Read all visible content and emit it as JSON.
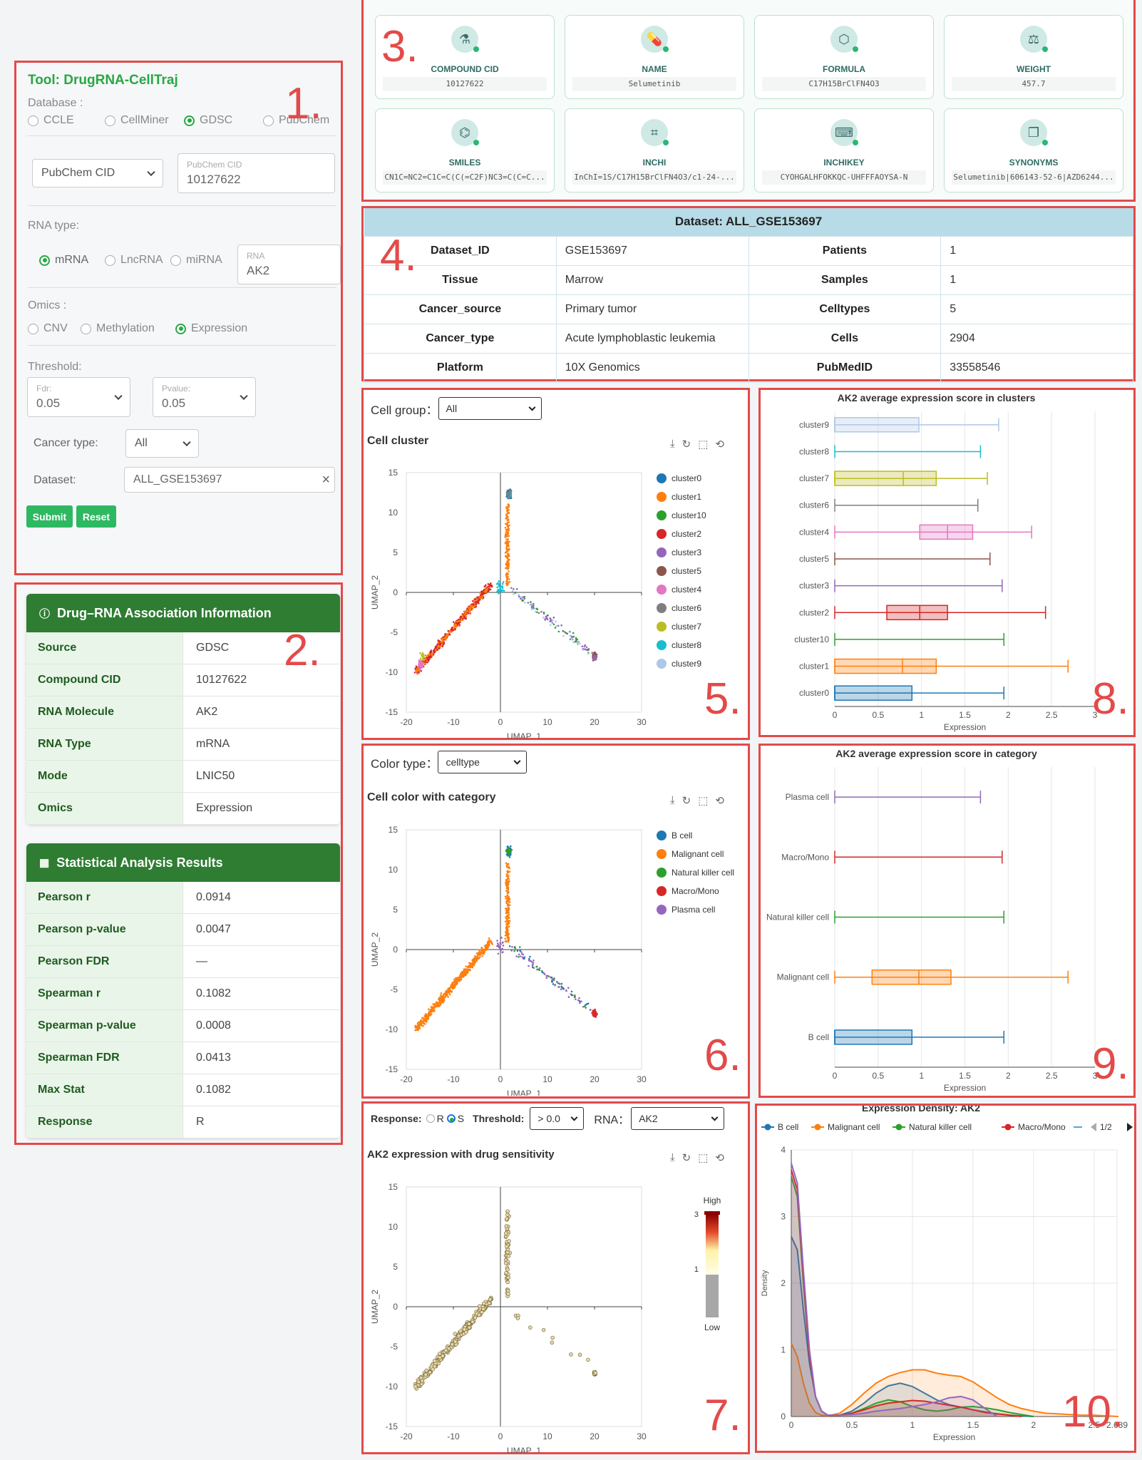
{
  "annotations": [
    "1.",
    "2.",
    "3.",
    "4.",
    "5.",
    "6.",
    "7.",
    "8.",
    "9.",
    "10."
  ],
  "tool_panel": {
    "title": "Tool: DrugRNA-CellTraj",
    "database_label": "Database :",
    "databases": [
      "CCLE",
      "CellMiner",
      "GDSC",
      "PubChem"
    ],
    "database_selected": "GDSC",
    "id_type": "PubChem CID",
    "id_field_label": "PubChem CID",
    "id_field_value": "10127622",
    "rna_type_label": "RNA type:",
    "rna_types": [
      "mRNA",
      "LncRNA",
      "miRNA"
    ],
    "rna_type_selected": "mRNA",
    "rna_field_label": "RNA",
    "rna_field_value": "AK2",
    "omics_label": "Omics :",
    "omics": [
      "CNV",
      "Methylation",
      "Expression"
    ],
    "omics_selected": "Expression",
    "threshold_label": "Threshold:",
    "fdr_label": "Fdr:",
    "fdr_value": "0.05",
    "pvalue_label": "Pvalue:",
    "pvalue_value": "0.05",
    "cancer_type_label": "Cancer type:",
    "cancer_type_value": "All",
    "dataset_label": "Dataset:",
    "dataset_value": "ALL_GSE153697",
    "clear_icon": "×",
    "submit_label": "Submit",
    "reset_label": "Reset"
  },
  "assoc_card": {
    "icon": "i",
    "title": "Drug–RNA Association Information",
    "rows": [
      {
        "k": "Source",
        "v": "GDSC"
      },
      {
        "k": "Compound CID",
        "v": "10127622"
      },
      {
        "k": "RNA Molecule",
        "v": "AK2"
      },
      {
        "k": "RNA Type",
        "v": "mRNA"
      },
      {
        "k": "Mode",
        "v": "LNIC50"
      },
      {
        "k": "Omics",
        "v": "Expression"
      }
    ]
  },
  "stats_card": {
    "icon": "📊",
    "title": "Statistical Analysis Results",
    "rows": [
      {
        "k": "Pearson r",
        "v": "0.0914"
      },
      {
        "k": "Pearson p-value",
        "v": "0.0047"
      },
      {
        "k": "Pearson FDR",
        "v": "—"
      },
      {
        "k": "Spearman r",
        "v": "0.1082"
      },
      {
        "k": "Spearman p-value",
        "v": "0.0008"
      },
      {
        "k": "Spearman FDR",
        "v": "0.0413"
      },
      {
        "k": "Max Stat",
        "v": "0.1082"
      },
      {
        "k": "Response",
        "v": "R"
      }
    ]
  },
  "compound_tiles": [
    {
      "label": "COMPOUND CID",
      "value": "10127622",
      "icon": "pill-bottle-icon",
      "glyph": "⚗"
    },
    {
      "label": "NAME",
      "value": "Selumetinib",
      "icon": "pills-icon",
      "glyph": "💊"
    },
    {
      "label": "FORMULA",
      "value": "C17H15BrClFN4O3",
      "icon": "hexagon-icon",
      "glyph": "⬡"
    },
    {
      "label": "WEIGHT",
      "value": "457.7",
      "icon": "scale-icon",
      "glyph": "⚖"
    },
    {
      "label": "SMILES",
      "value": "CN1C=NC2=C1C=C(C(=C2F)NC3=C(C=C...",
      "icon": "molecule-icon",
      "glyph": "⌬"
    },
    {
      "label": "INCHI",
      "value": "InChI=1S/C17H15BrClFN4O3/c1-24-...",
      "icon": "scan-icon",
      "glyph": "⌗"
    },
    {
      "label": "INCHIKEY",
      "value": "CYOHGALHFOKKQC-UHFFFAOYSA-N",
      "icon": "terminal-icon",
      "glyph": "⌨"
    },
    {
      "label": "SYNONYMS",
      "value": "Selumetinib|606143-52-6|AZD6244...",
      "icon": "copy-icon",
      "glyph": "❐"
    }
  ],
  "dataset_table": {
    "title": "Dataset: ALL_GSE153697",
    "rows": [
      [
        "Dataset_ID",
        "GSE153697",
        "Patients",
        "1"
      ],
      [
        "Tissue",
        "Marrow",
        "Samples",
        "1"
      ],
      [
        "Cancer_source",
        "Primary tumor",
        "Celltypes",
        "5"
      ],
      [
        "Cancer_type",
        "Acute lymphoblastic leukemia",
        "Cells",
        "2904"
      ],
      [
        "Platform",
        "10X Genomics",
        "PubMedID",
        "33558546"
      ]
    ]
  },
  "cluster_panel": {
    "control_label": "Cell group：",
    "control_value": "All",
    "title": "Cell cluster",
    "xlabel": "UMAP_1",
    "ylabel": "UMAP_2"
  },
  "category_panel": {
    "control_label": "Color type：",
    "control_value": "celltype",
    "title": "Cell color with category",
    "xlabel": "UMAP_1",
    "ylabel": "UMAP_2"
  },
  "response_panel": {
    "response_label": "Response:",
    "response_options": [
      "R",
      "S"
    ],
    "response_selected": "S",
    "threshold_label": "Threshold:",
    "threshold_value": "> 0.0",
    "rna_label": "RNA：",
    "rna_value": "AK2",
    "title": "AK2 expression with drug sensitivity",
    "xlabel": "UMAP_1",
    "ylabel": "UMAP_2",
    "scale_high": "High",
    "scale_low": "Low",
    "scale_max": "3",
    "scale_mid": "1"
  },
  "colors": {
    "cluster0": "#1f77b4",
    "cluster1": "#ff7f0e",
    "cluster10": "#2ca02c",
    "cluster2": "#d62728",
    "cluster3": "#9467bd",
    "cluster5": "#8c564b",
    "cluster4": "#e377c2",
    "cluster6": "#7f7f7f",
    "cluster7": "#bcbd22",
    "cluster8": "#17becf",
    "cluster9": "#aec7e8",
    "B cell": "#1f77b4",
    "Malignant cell": "#ff7f0e",
    "Natural killer cell": "#2ca02c",
    "Macro/Mono": "#d62728",
    "Plasma cell": "#9467bd"
  },
  "chart_data": [
    {
      "type": "scatter",
      "title": "Cell cluster",
      "xlabel": "UMAP_1",
      "ylabel": "UMAP_2",
      "xlim": [
        -20,
        30
      ],
      "ylim": [
        -15,
        15
      ],
      "xticks": [
        -20,
        -10,
        0,
        10,
        20,
        30
      ],
      "yticks": [
        -15,
        -10,
        -5,
        0,
        5,
        10,
        15
      ],
      "legend": [
        "cluster0",
        "cluster1",
        "cluster10",
        "cluster2",
        "cluster3",
        "cluster5",
        "cluster4",
        "cluster6",
        "cluster7",
        "cluster8",
        "cluster9"
      ],
      "legend_position": "right",
      "grid": "off"
    },
    {
      "type": "scatter",
      "title": "Cell color with category",
      "xlabel": "UMAP_1",
      "ylabel": "UMAP_2",
      "xlim": [
        -20,
        30
      ],
      "ylim": [
        -15,
        15
      ],
      "xticks": [
        -20,
        -10,
        0,
        10,
        20,
        30
      ],
      "yticks": [
        -15,
        -10,
        -5,
        0,
        5,
        10,
        15
      ],
      "legend": [
        "B cell",
        "Malignant cell",
        "Natural killer cell",
        "Macro/Mono",
        "Plasma cell"
      ],
      "legend_position": "right",
      "grid": "off"
    },
    {
      "type": "scatter",
      "title": "AK2 expression with drug sensitivity",
      "xlabel": "UMAP_1",
      "ylabel": "UMAP_2",
      "xlim": [
        -20,
        30
      ],
      "ylim": [
        -15,
        15
      ],
      "xticks": [
        -20,
        -10,
        0,
        10,
        20,
        30
      ],
      "yticks": [
        -15,
        -10,
        -5,
        0,
        5,
        10,
        15
      ],
      "grid": "off"
    },
    {
      "type": "box",
      "orientation": "horizontal",
      "title": "AK2 average expression score in clusters",
      "xlabel": "Expression",
      "xlim": [
        0,
        3
      ],
      "xticks": [
        0,
        0.5,
        1,
        1.5,
        2,
        2.5,
        3
      ],
      "xtick_labels": [
        "0",
        "0.5",
        "1",
        "1.5",
        "2",
        "2.5",
        "3"
      ],
      "categories": [
        "cluster9",
        "cluster8",
        "cluster7",
        "cluster6",
        "cluster4",
        "cluster5",
        "cluster3",
        "cluster2",
        "cluster10",
        "cluster1",
        "cluster0"
      ],
      "boxes": [
        {
          "min": 0,
          "q1": 0,
          "median": 0,
          "q3": 0.97,
          "max": 1.89
        },
        {
          "min": 0,
          "q1": 0,
          "median": 0,
          "q3": 0,
          "max": 1.68
        },
        {
          "min": 0,
          "q1": 0,
          "median": 0.79,
          "q3": 1.17,
          "max": 1.76
        },
        {
          "min": 0,
          "q1": 0,
          "median": 0,
          "q3": 0,
          "max": 1.65
        },
        {
          "min": 0,
          "q1": 0.98,
          "median": 1.3,
          "q3": 1.59,
          "max": 2.27
        },
        {
          "min": 0,
          "q1": 0,
          "median": 0,
          "q3": 0,
          "max": 1.79
        },
        {
          "min": 0,
          "q1": 0,
          "median": 0,
          "q3": 0,
          "max": 1.93
        },
        {
          "min": 0,
          "q1": 0.6,
          "median": 0.98,
          "q3": 1.3,
          "max": 2.43
        },
        {
          "min": 0,
          "q1": 0,
          "median": 0,
          "q3": 0,
          "max": 1.95
        },
        {
          "min": 0,
          "q1": 0,
          "median": 0.78,
          "q3": 1.17,
          "max": 2.69
        },
        {
          "min": 0,
          "q1": 0,
          "median": 0,
          "q3": 0.89,
          "max": 1.95
        }
      ]
    },
    {
      "type": "box",
      "orientation": "horizontal",
      "title": "AK2 average expression score in category",
      "xlabel": "Expression",
      "xlim": [
        0,
        3
      ],
      "xticks": [
        0,
        0.5,
        1,
        1.5,
        2,
        2.5,
        3
      ],
      "xtick_labels": [
        "0",
        "0.5",
        "1",
        "1.5",
        "2",
        "2.5",
        "3"
      ],
      "categories": [
        "Plasma cell",
        "Macro/Mono",
        "Natural killer cell",
        "Malignant cell",
        "B cell"
      ],
      "boxes": [
        {
          "min": 0,
          "q1": 0,
          "median": 0,
          "q3": 0,
          "max": 1.68
        },
        {
          "min": 0,
          "q1": 0,
          "median": 0,
          "q3": 0,
          "max": 1.93
        },
        {
          "min": 0,
          "q1": 0,
          "median": 0,
          "q3": 0,
          "max": 1.95
        },
        {
          "min": 0,
          "q1": 0.43,
          "median": 0.97,
          "q3": 1.34,
          "max": 2.69
        },
        {
          "min": 0,
          "q1": 0,
          "median": 0,
          "q3": 0.89,
          "max": 1.95
        }
      ]
    },
    {
      "type": "area",
      "title": "Expression Density: AK2",
      "xlabel": "Expression",
      "ylabel": "Density",
      "xlim": [
        0,
        2.689
      ],
      "ylim": [
        0,
        4
      ],
      "xticks": [
        0,
        0.5,
        1,
        1.5,
        2,
        2.5,
        2.689
      ],
      "xtick_labels": [
        "0",
        "0.5",
        "1",
        "1.5",
        "2",
        "2.5",
        "2.689"
      ],
      "yticks": [
        0,
        1,
        2,
        3,
        4
      ],
      "legend": [
        "B cell",
        "Malignant cell",
        "Natural killer cell",
        "Macro/Mono"
      ],
      "legend_page": "1/2",
      "legend_position": "top",
      "series": [
        {
          "name": "B cell",
          "x": [
            0,
            0.05,
            0.1,
            0.15,
            0.2,
            0.25,
            0.3,
            0.4,
            0.5,
            0.6,
            0.7,
            0.8,
            0.9,
            1.0,
            1.1,
            1.2,
            1.3,
            1.4,
            1.5,
            1.6,
            1.7,
            1.8,
            1.9,
            2.0
          ],
          "y": [
            2.7,
            2.5,
            1.6,
            0.8,
            0.3,
            0.08,
            0.02,
            0.02,
            0.08,
            0.2,
            0.35,
            0.46,
            0.5,
            0.45,
            0.35,
            0.25,
            0.18,
            0.14,
            0.1,
            0.07,
            0.04,
            0.02,
            0.01,
            0
          ]
        },
        {
          "name": "Malignant cell",
          "x": [
            0,
            0.05,
            0.1,
            0.15,
            0.2,
            0.25,
            0.3,
            0.4,
            0.5,
            0.6,
            0.7,
            0.8,
            0.9,
            1.0,
            1.1,
            1.2,
            1.3,
            1.4,
            1.5,
            1.6,
            1.7,
            1.8,
            1.9,
            2.0,
            2.1,
            2.2,
            2.3,
            2.4,
            2.5,
            2.6,
            2.7
          ],
          "y": [
            1.1,
            0.9,
            0.5,
            0.2,
            0.06,
            0.02,
            0.01,
            0.05,
            0.18,
            0.35,
            0.5,
            0.6,
            0.66,
            0.7,
            0.7,
            0.65,
            0.62,
            0.6,
            0.52,
            0.4,
            0.28,
            0.18,
            0.12,
            0.08,
            0.05,
            0.04,
            0.03,
            0.02,
            0.02,
            0.01,
            0
          ]
        },
        {
          "name": "Natural killer cell",
          "x": [
            0,
            0.05,
            0.1,
            0.15,
            0.2,
            0.25,
            0.3,
            0.4,
            0.5,
            0.6,
            0.7,
            0.8,
            0.9,
            1.0,
            1.1,
            1.2,
            1.3,
            1.4,
            1.5,
            1.6,
            1.7,
            1.8,
            1.9,
            2.0
          ],
          "y": [
            3.6,
            3.3,
            2.0,
            0.9,
            0.3,
            0.08,
            0.02,
            0.02,
            0.05,
            0.12,
            0.2,
            0.25,
            0.22,
            0.15,
            0.1,
            0.08,
            0.1,
            0.14,
            0.15,
            0.13,
            0.1,
            0.06,
            0.03,
            0
          ]
        },
        {
          "name": "Macro/Mono",
          "x": [
            0,
            0.05,
            0.1,
            0.15,
            0.2,
            0.25,
            0.3,
            0.4,
            0.5,
            0.6,
            0.7,
            0.8,
            0.9,
            1.0,
            1.1,
            1.2,
            1.3,
            1.4,
            1.5,
            1.6,
            1.7,
            1.8,
            1.9
          ],
          "y": [
            3.7,
            3.4,
            2.1,
            0.9,
            0.3,
            0.08,
            0.02,
            0.02,
            0.05,
            0.1,
            0.16,
            0.2,
            0.22,
            0.24,
            0.23,
            0.2,
            0.17,
            0.14,
            0.1,
            0.06,
            0.04,
            0.02,
            0
          ]
        },
        {
          "name": "Plasma cell",
          "x": [
            0,
            0.05,
            0.1,
            0.15,
            0.2,
            0.25,
            0.3,
            0.4,
            0.5,
            0.6,
            0.7,
            0.8,
            0.9,
            1.0,
            1.1,
            1.2,
            1.3,
            1.4,
            1.5,
            1.6,
            1.7
          ],
          "y": [
            3.8,
            3.5,
            2.2,
            1.0,
            0.3,
            0.08,
            0.02,
            0.02,
            0.03,
            0.05,
            0.08,
            0.1,
            0.12,
            0.15,
            0.18,
            0.22,
            0.28,
            0.3,
            0.25,
            0.12,
            0
          ]
        }
      ]
    }
  ]
}
